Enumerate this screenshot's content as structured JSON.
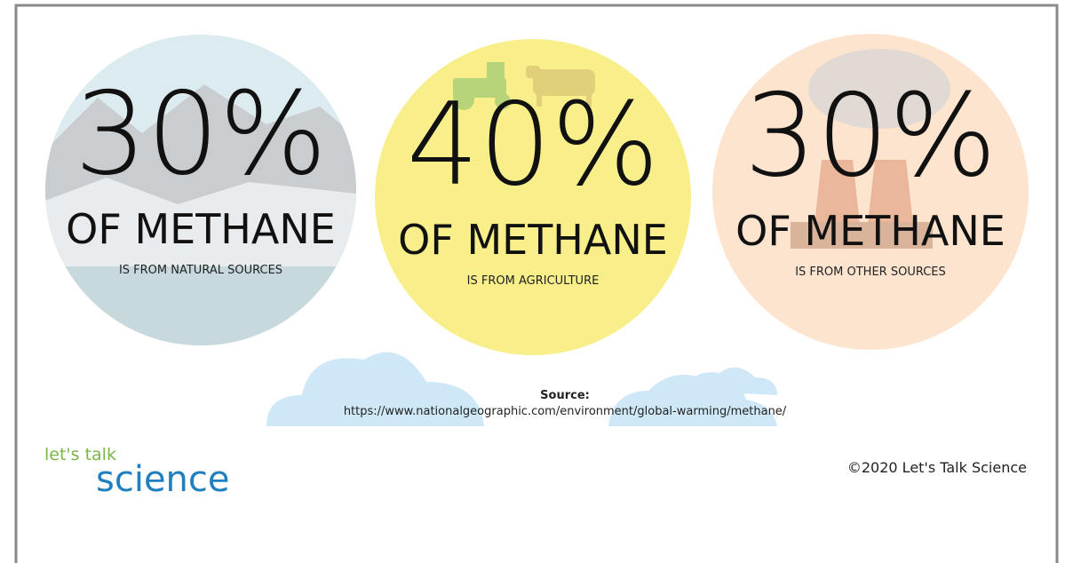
{
  "panels": [
    {
      "percent": "30%",
      "heading": "OF METHANE",
      "caption": "IS FROM NATURAL SOURCES"
    },
    {
      "percent": "40%",
      "heading": "OF METHANE",
      "caption": "IS FROM AGRICULTURE"
    },
    {
      "percent": "30%",
      "heading": "OF METHANE",
      "caption": "IS FROM OTHER SOURCES"
    }
  ],
  "source": {
    "label": "Source:",
    "url": "https://www.nationalgeographic.com/environment/global-warming/methane/"
  },
  "logo": {
    "top": "let's talk",
    "bottom": "science"
  },
  "copyright": "©2020 Let's Talk Science"
}
